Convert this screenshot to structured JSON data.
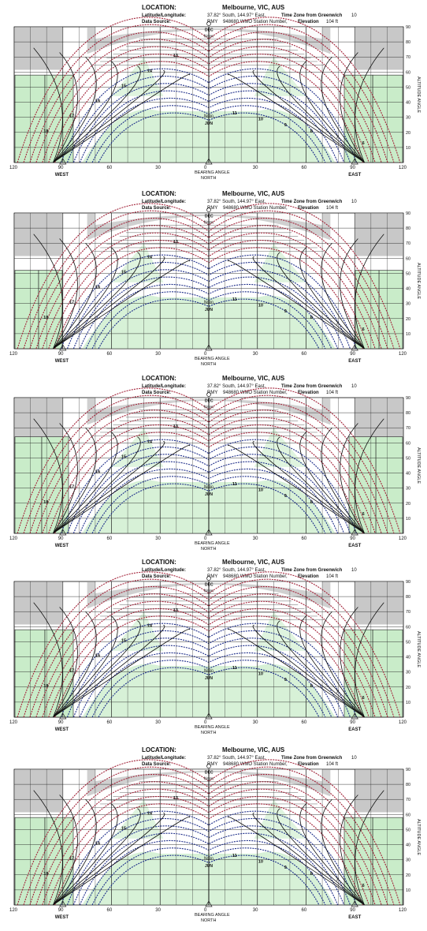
{
  "header": {
    "location_label": "LOCATION:",
    "location_value": "Melbourne, VIC, AUS",
    "latlong_label": "Latitude/Longitude:",
    "latlong_value": "37.82° South, 144.97° East,",
    "timezone_label": "Time Zone from Greenwich",
    "timezone_value": "10",
    "source_label": "Data Source:",
    "source_value": "RMY",
    "station_value": "948680 WMO Station Number,",
    "elevation_label": "Elevation",
    "elevation_value": "104 ft"
  },
  "labels": {
    "west": "WEST",
    "east": "EAST",
    "north": "NORTH",
    "bearing": "BEARING ANGLE",
    "altitude": "ALTITUDE ANGLE",
    "dec": "DEC",
    "jun": "JUN",
    "noon": "Noon"
  },
  "axes": {
    "bearing_ticks": [
      "120",
      "90",
      "60",
      "30",
      "0",
      "30",
      "60",
      "90",
      "120"
    ],
    "altitude_ticks": [
      "90",
      "80",
      "70",
      "60",
      "50",
      "40",
      "30",
      "20",
      "10"
    ],
    "bearing_range": [
      -120,
      120
    ],
    "altitude_range": [
      0,
      90
    ]
  },
  "hour_labels_am": [
    "6",
    "7",
    "8",
    "9",
    "10",
    "11"
  ],
  "hour_labels_pm": [
    "13",
    "14",
    "15",
    "16",
    "17",
    "18"
  ],
  "panels": [
    {
      "id": "panel-1",
      "shading": "wide-side-blocks"
    },
    {
      "id": "panel-2",
      "shading": "narrow-side-blocks"
    },
    {
      "id": "panel-3",
      "shading": "tall-side-blocks"
    },
    {
      "id": "panel-4",
      "shading": "wide-side-blocks"
    },
    {
      "id": "panel-5",
      "shading": "wide-side-blocks"
    }
  ],
  "colors": {
    "grid": "#222222",
    "shade_grey": "#c8c8c8",
    "shade_green": "#c9ecc9",
    "summer_paths": "#a3243a",
    "winter_paths": "#1f2f8a",
    "hour_lines": "#111111",
    "background": "#ffffff"
  }
}
